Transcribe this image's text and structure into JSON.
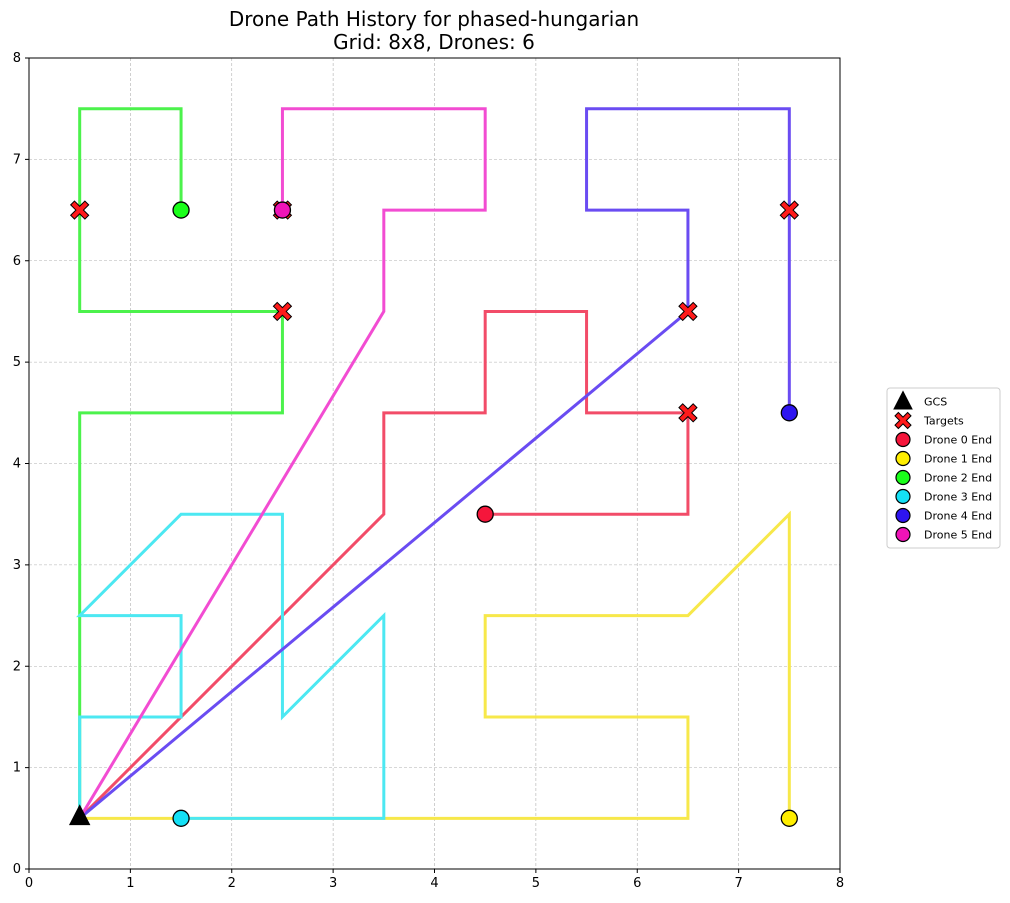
{
  "chart_data": {
    "type": "line",
    "title": "Drone Path History for phased-hungarian",
    "subtitle": "Grid: 8x8, Drones: 6",
    "xlim": [
      0,
      8
    ],
    "ylim": [
      0,
      8
    ],
    "xticks": [
      "0",
      "1",
      "2",
      "3",
      "4",
      "5",
      "6",
      "7",
      "8"
    ],
    "yticks": [
      "0",
      "1",
      "2",
      "3",
      "4",
      "5",
      "6",
      "7",
      "8"
    ],
    "grid": true,
    "legend_position": "right",
    "gcs": {
      "label": "GCS",
      "x": 0.5,
      "y": 0.5,
      "color": "#000000"
    },
    "targets": {
      "label": "Targets",
      "color": "#ff1a1a",
      "points": [
        [
          0.5,
          6.5
        ],
        [
          2.5,
          6.5
        ],
        [
          2.5,
          5.5
        ],
        [
          6.5,
          5.5
        ],
        [
          6.5,
          4.5
        ],
        [
          7.5,
          6.5
        ]
      ]
    },
    "series": [
      {
        "name": "Drone 0 End",
        "path_color": "#f24c68",
        "end_color": "#f5163b",
        "path": [
          [
            0.5,
            0.5
          ],
          [
            3.5,
            3.5
          ],
          [
            3.5,
            4.5
          ],
          [
            4.5,
            4.5
          ],
          [
            4.5,
            5.5
          ],
          [
            5.5,
            5.5
          ],
          [
            5.5,
            4.5
          ],
          [
            6.5,
            4.5
          ],
          [
            6.5,
            3.5
          ],
          [
            4.5,
            3.5
          ]
        ]
      },
      {
        "name": "Drone 1 End",
        "path_color": "#f7e84a",
        "end_color": "#ffee00",
        "path": [
          [
            0.5,
            0.5
          ],
          [
            6.5,
            0.5
          ],
          [
            6.5,
            1.5
          ],
          [
            4.5,
            1.5
          ],
          [
            4.5,
            2.5
          ],
          [
            6.5,
            2.5
          ],
          [
            7.5,
            3.5
          ],
          [
            7.5,
            0.5
          ]
        ]
      },
      {
        "name": "Drone 2 End",
        "path_color": "#4cf24c",
        "end_color": "#1aff1a",
        "path": [
          [
            0.5,
            0.5
          ],
          [
            0.5,
            4.5
          ],
          [
            2.5,
            4.5
          ],
          [
            2.5,
            5.5
          ],
          [
            0.5,
            5.5
          ],
          [
            0.5,
            7.5
          ],
          [
            1.5,
            7.5
          ],
          [
            1.5,
            6.5
          ]
        ]
      },
      {
        "name": "Drone 3 End",
        "path_color": "#4ce8f2",
        "end_color": "#14e0f5",
        "path": [
          [
            0.5,
            0.5
          ],
          [
            0.5,
            1.5
          ],
          [
            1.5,
            1.5
          ],
          [
            1.5,
            2.5
          ],
          [
            0.5,
            2.5
          ],
          [
            1.5,
            3.5
          ],
          [
            2.5,
            3.5
          ],
          [
            2.5,
            1.5
          ],
          [
            3.5,
            2.5
          ],
          [
            3.5,
            0.5
          ],
          [
            1.5,
            0.5
          ]
        ]
      },
      {
        "name": "Drone 4 End",
        "path_color": "#6a4cf2",
        "end_color": "#2e14f0",
        "path": [
          [
            0.5,
            0.5
          ],
          [
            6.5,
            5.5
          ],
          [
            6.5,
            6.5
          ],
          [
            5.5,
            6.5
          ],
          [
            5.5,
            7.5
          ],
          [
            7.5,
            7.5
          ],
          [
            7.5,
            4.5
          ]
        ]
      },
      {
        "name": "Drone 5 End",
        "path_color": "#f24cd2",
        "end_color": "#f014b8",
        "path": [
          [
            0.5,
            0.5
          ],
          [
            3.5,
            5.5
          ],
          [
            3.5,
            6.5
          ],
          [
            4.5,
            6.5
          ],
          [
            4.5,
            7.5
          ],
          [
            2.5,
            7.5
          ],
          [
            2.5,
            6.5
          ]
        ]
      }
    ]
  }
}
